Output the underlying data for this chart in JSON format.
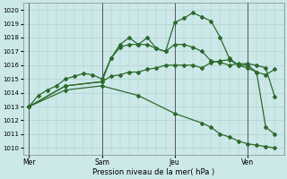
{
  "xlabel": "Pression niveau de la mer( hPa )",
  "background_color": "#cce8e8",
  "grid_color": "#aacccc",
  "line_color": "#2d6a2d",
  "ylim": [
    1009.5,
    1020.5
  ],
  "yticks": [
    1010,
    1011,
    1012,
    1013,
    1014,
    1015,
    1016,
    1017,
    1018,
    1019,
    1020
  ],
  "day_labels": [
    "Mer",
    "Sam",
    "Jeu",
    "Ven"
  ],
  "day_positions": [
    0,
    24,
    48,
    72
  ],
  "xlim": [
    -2,
    84
  ],
  "vline_positions": [
    0,
    24,
    48,
    72
  ],
  "series": [
    {
      "x": [
        0,
        3,
        6,
        9,
        12,
        15,
        18,
        21,
        24,
        27,
        30,
        33,
        36,
        39,
        42,
        45,
        48,
        51,
        54,
        57,
        60,
        63,
        66,
        69,
        72,
        75,
        78,
        81
      ],
      "y": [
        1013.0,
        1013.8,
        1014.2,
        1014.5,
        1015.0,
        1015.2,
        1015.4,
        1015.3,
        1015.0,
        1016.5,
        1017.3,
        1017.5,
        1017.5,
        1018.0,
        1017.2,
        1017.0,
        1019.1,
        1019.4,
        1019.8,
        1019.5,
        1019.2,
        1018.0,
        1016.5,
        1016.0,
        1015.8,
        1015.5,
        1015.3,
        1015.7
      ]
    },
    {
      "x": [
        0,
        12,
        24,
        27,
        30,
        33,
        36,
        39,
        42,
        45,
        48,
        51,
        54,
        57,
        60,
        63,
        66,
        69,
        72,
        75,
        78,
        81
      ],
      "y": [
        1013.0,
        1014.5,
        1014.8,
        1016.5,
        1017.5,
        1018.0,
        1017.5,
        1017.5,
        1017.2,
        1017.0,
        1017.5,
        1017.5,
        1017.3,
        1017.0,
        1016.3,
        1016.2,
        1016.0,
        1016.1,
        1016.1,
        1016.0,
        1015.8,
        1013.7
      ]
    },
    {
      "x": [
        0,
        12,
        24,
        27,
        30,
        33,
        36,
        39,
        42,
        45,
        48,
        51,
        54,
        57,
        60,
        63,
        66,
        69,
        72,
        75,
        78,
        81
      ],
      "y": [
        1013.0,
        1014.5,
        1014.8,
        1015.2,
        1015.3,
        1015.5,
        1015.5,
        1015.7,
        1015.8,
        1016.0,
        1016.0,
        1016.0,
        1016.0,
        1015.8,
        1016.2,
        1016.3,
        1016.4,
        1016.0,
        1016.0,
        1015.5,
        1011.5,
        1011.0
      ]
    },
    {
      "x": [
        0,
        12,
        24,
        36,
        48,
        57,
        60,
        63,
        66,
        69,
        72,
        75,
        78,
        81
      ],
      "y": [
        1013.0,
        1014.2,
        1014.5,
        1013.8,
        1012.5,
        1011.8,
        1011.5,
        1011.0,
        1010.8,
        1010.5,
        1010.3,
        1010.2,
        1010.1,
        1010.0
      ]
    }
  ],
  "figsize": [
    3.2,
    2.0
  ],
  "dpi": 100
}
